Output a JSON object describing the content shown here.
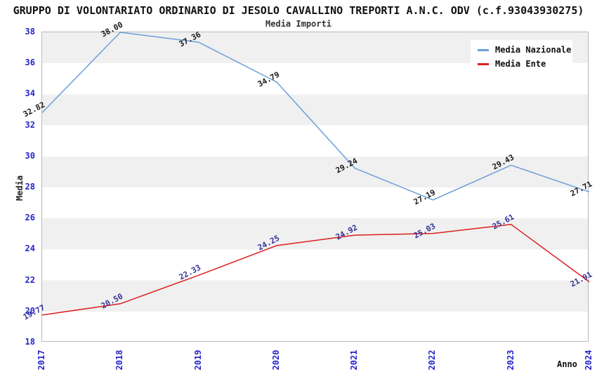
{
  "title": "GRUPPO DI VOLONTARIATO ORDINARIO DI JESOLO CAVALLINO TREPORTI A.N.C. ODV (c.f.93043930275)",
  "subtitle": "Media Importi",
  "chart_data": {
    "type": "line",
    "categories": [
      "2017",
      "2018",
      "2019",
      "2020",
      "2021",
      "2022",
      "2023",
      "2024"
    ],
    "series": [
      {
        "name": "Media Nazionale",
        "color": "#6b9fd9",
        "label_color": "#1a1a1a",
        "values": [
          32.82,
          38.0,
          37.36,
          34.79,
          29.24,
          27.19,
          29.43,
          27.71
        ]
      },
      {
        "name": "Media Ente",
        "color": "#dd1f1f",
        "label_color": "#333399",
        "values": [
          19.77,
          20.5,
          22.33,
          24.25,
          24.92,
          25.03,
          25.61,
          21.91
        ]
      }
    ],
    "xlabel": "Anno",
    "ylabel": "Media",
    "ylim": [
      18,
      38
    ],
    "ytick_step": 2,
    "xtick_rotation_deg": -90,
    "value_label_rotation_deg": -28,
    "value_label_decimals": 2,
    "grid": "alternating-horizontal-bands",
    "legend_position": "top-right"
  },
  "colors": {
    "tick_label": "#2424cc",
    "band": "#f0f0f0",
    "band_alt": "#ffffff",
    "plot_border": "#b9b9b9",
    "title_text": "#111111"
  }
}
